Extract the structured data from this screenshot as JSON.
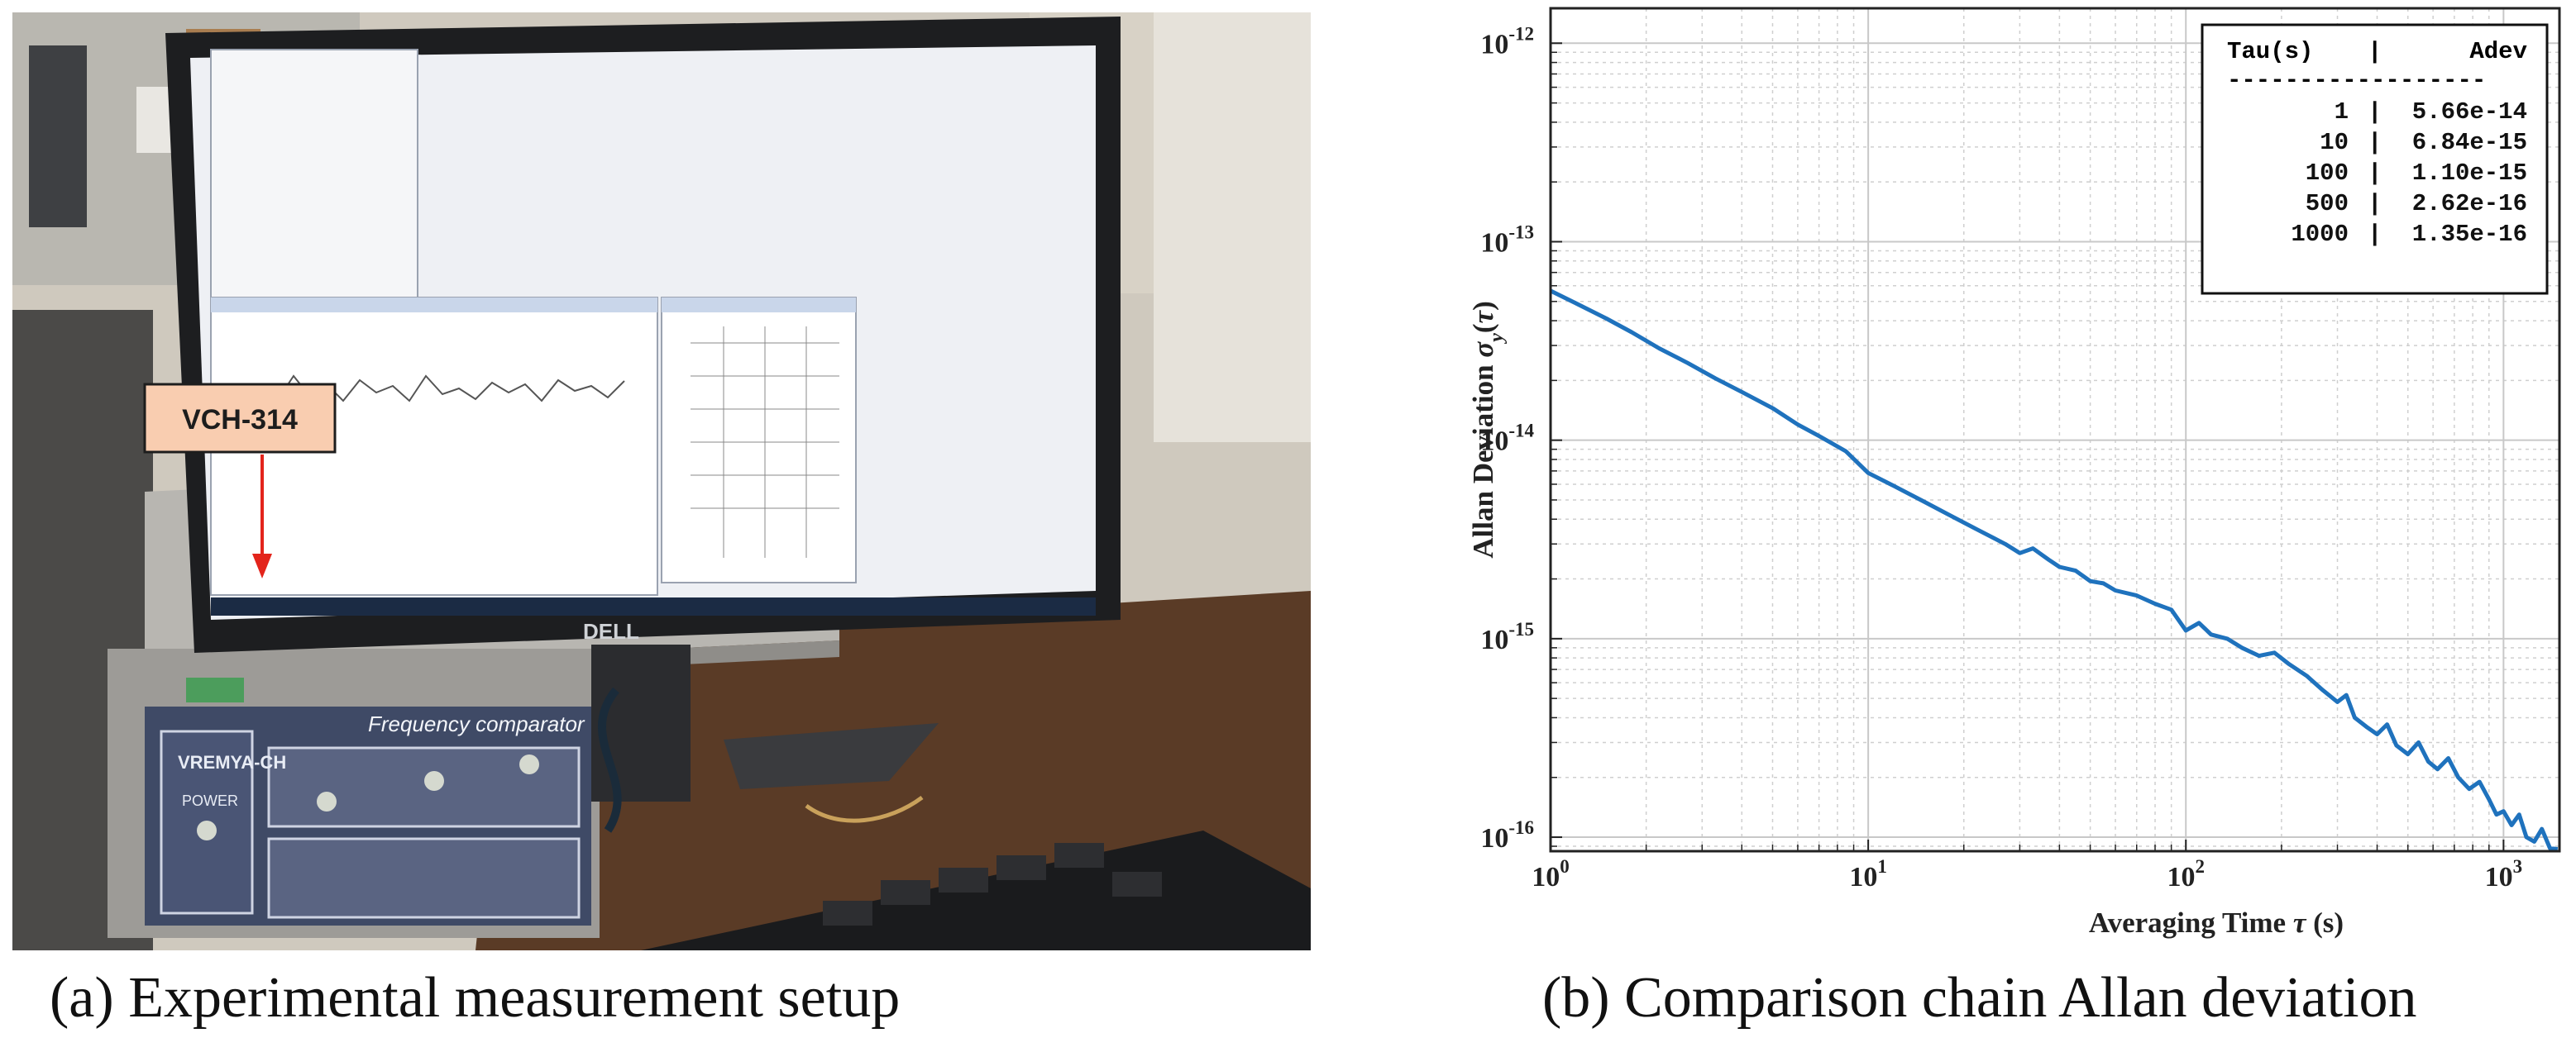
{
  "photo": {
    "callout_label": "VCH-314",
    "monitor_brand": "DELL",
    "device_panel_title": "Frequency comparator VCH-314",
    "device_brand": "VREMYA-CH",
    "power_label": "POWER",
    "icon": "photo-of-lab-equipment",
    "colors": {
      "callout_fill": "#f9cdb0",
      "arrow": "#e3241b"
    }
  },
  "captions": {
    "left": "(a) Experimental measurement setup",
    "right": "(b) Comparison chain Allan deviation"
  },
  "chart_data": {
    "type": "line",
    "title": "",
    "xlabel": "Averaging Time τ (s)",
    "ylabel": "Allan Deviation σ_y(τ)",
    "x_scale": "log",
    "y_scale": "log",
    "xlim": [
      1,
      1500
    ],
    "ylim": [
      8.5e-17,
      1.5e-12
    ],
    "grid": true,
    "line_color": "#1f72bd",
    "x_ticks": [
      {
        "base": "10",
        "exp": "0",
        "value": 1
      },
      {
        "base": "10",
        "exp": "1",
        "value": 10
      },
      {
        "base": "10",
        "exp": "2",
        "value": 100
      },
      {
        "base": "10",
        "exp": "3",
        "value": 1000
      }
    ],
    "y_ticks": [
      {
        "base": "10",
        "exp": "-16",
        "value": 1e-16
      },
      {
        "base": "10",
        "exp": "-15",
        "value": 1e-15
      },
      {
        "base": "10",
        "exp": "-14",
        "value": 1e-14
      },
      {
        "base": "10",
        "exp": "-13",
        "value": 1e-13
      },
      {
        "base": "10",
        "exp": "-12",
        "value": 1e-12
      }
    ],
    "table": {
      "header": [
        "Tau(s)",
        "Adev"
      ],
      "divider": "------------------",
      "rows": [
        [
          "1",
          "5.66e-14"
        ],
        [
          "10",
          "6.84e-15"
        ],
        [
          "100",
          "1.10e-15"
        ],
        [
          "500",
          "2.62e-16"
        ],
        [
          "1000",
          "1.35e-16"
        ]
      ],
      "legend_position": "top-right"
    },
    "series": [
      {
        "x": [
          1,
          1.2,
          1.5,
          1.8,
          2.2,
          2.7,
          3.3,
          4,
          5,
          6,
          7,
          8.5,
          10,
          12,
          15,
          18,
          22,
          27,
          30,
          33,
          37,
          40,
          45,
          50,
          55,
          60,
          70,
          80,
          90,
          100,
          110,
          120,
          135,
          150,
          170,
          190,
          210,
          240,
          270,
          300,
          320,
          340,
          370,
          400,
          430,
          460,
          500,
          540,
          580,
          620,
          670,
          720,
          780,
          840,
          900,
          950,
          1000,
          1060,
          1120,
          1180,
          1250,
          1320,
          1400,
          1480
        ],
        "y": [
          5.66e-14,
          4.9e-14,
          4.1e-14,
          3.5e-14,
          2.9e-14,
          2.45e-14,
          2.05e-14,
          1.75e-14,
          1.45e-14,
          1.2e-14,
          1.05e-14,
          8.8e-15,
          6.84e-15,
          5.9e-15,
          4.9e-15,
          4.2e-15,
          3.55e-15,
          3e-15,
          2.7e-15,
          2.85e-15,
          2.5e-15,
          2.3e-15,
          2.2e-15,
          1.95e-15,
          1.9e-15,
          1.75e-15,
          1.65e-15,
          1.5e-15,
          1.4e-15,
          1.1e-15,
          1.2e-15,
          1.05e-15,
          1e-15,
          9e-16,
          8.2e-16,
          8.5e-16,
          7.5e-16,
          6.5e-16,
          5.5e-16,
          4.8e-16,
          5.2e-16,
          4e-16,
          3.6e-16,
          3.3e-16,
          3.7e-16,
          2.9e-16,
          2.62e-16,
          3e-16,
          2.4e-16,
          2.2e-16,
          2.5e-16,
          2e-16,
          1.75e-16,
          1.9e-16,
          1.55e-16,
          1.3e-16,
          1.35e-16,
          1.15e-16,
          1.3e-16,
          1e-16,
          9.5e-17,
          1.1e-16,
          8.8e-17,
          8.7e-17
        ]
      }
    ]
  }
}
